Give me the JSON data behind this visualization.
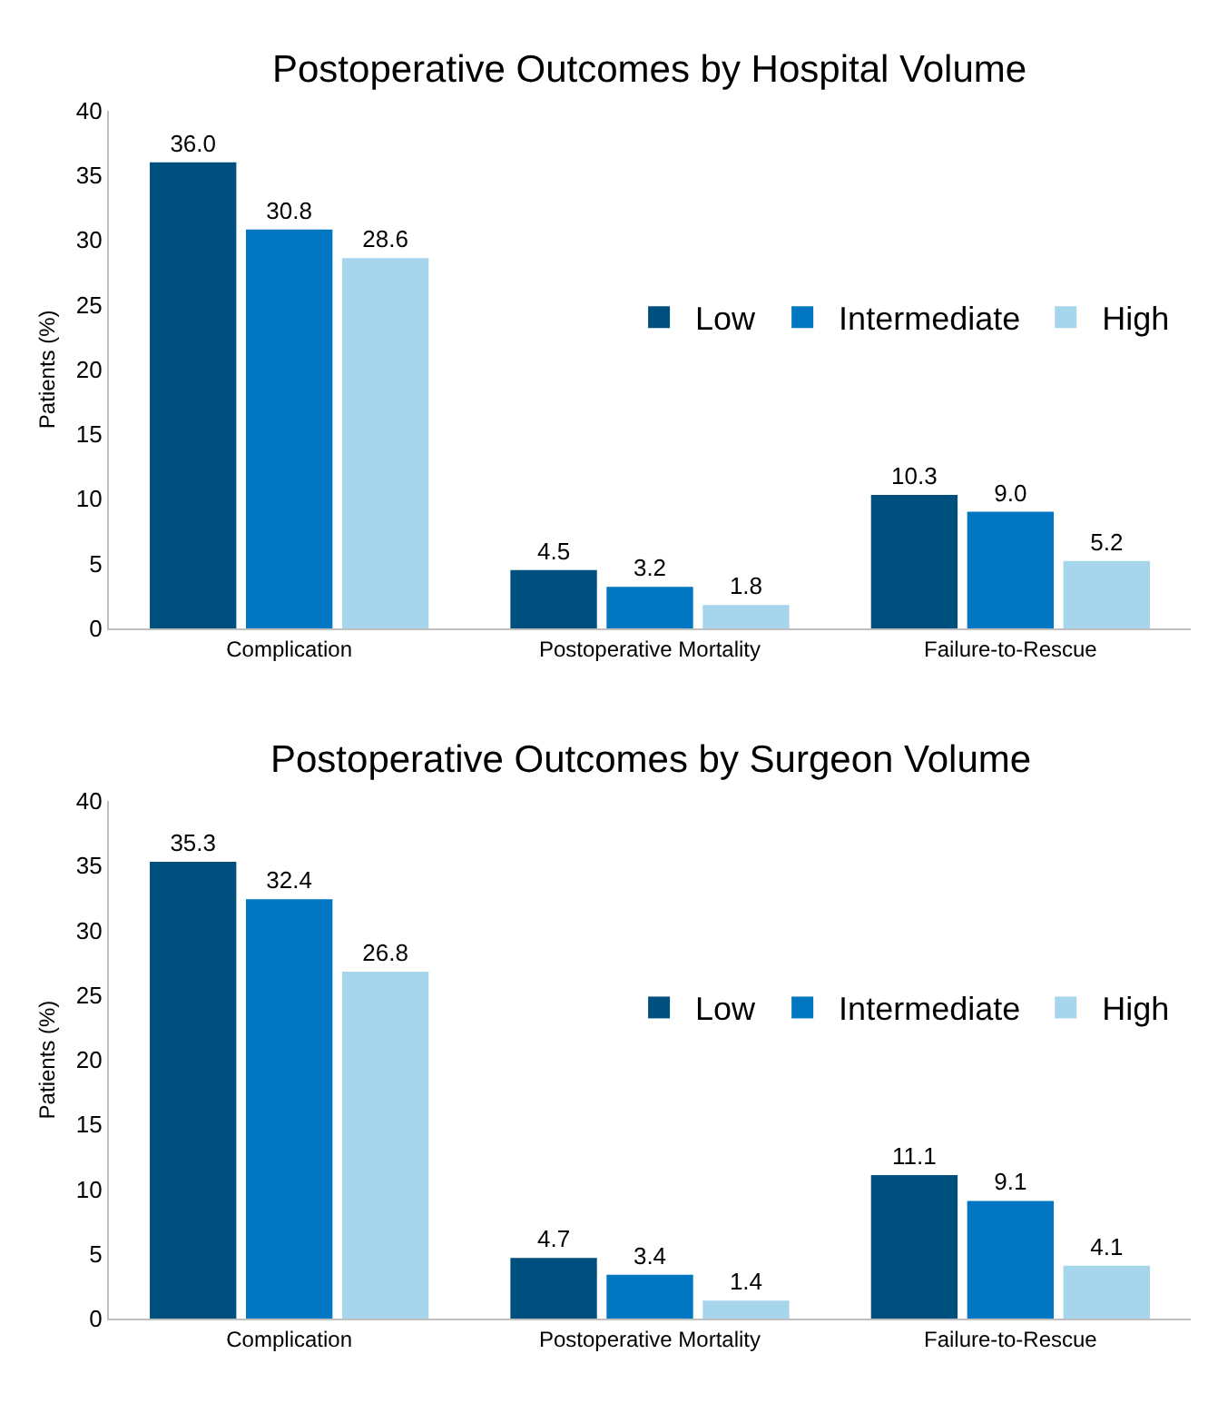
{
  "chart_data": [
    {
      "type": "bar",
      "title": "Postoperative Outcomes by Hospital Volume",
      "ylabel": "Patients (%)",
      "categories": [
        "Complication",
        "Postoperative Mortality",
        "Failure-to-Rescue"
      ],
      "series": [
        {
          "name": "Low",
          "color": "#00507f",
          "values": [
            36.0,
            4.5,
            10.3
          ],
          "value_labels": [
            "36.0",
            "4.5",
            "10.3"
          ]
        },
        {
          "name": "Intermediate",
          "color": "#0077c0",
          "values": [
            30.8,
            3.2,
            9.0
          ],
          "value_labels": [
            "30.8",
            "3.2",
            "9.0"
          ]
        },
        {
          "name": "High",
          "color": "#a6d5ec",
          "values": [
            28.6,
            1.8,
            5.2
          ],
          "value_labels": [
            "28.6",
            "1.8",
            "5.2"
          ]
        }
      ],
      "ylim": [
        0,
        40
      ],
      "yticks": [
        0,
        5,
        10,
        15,
        20,
        25,
        30,
        35,
        40
      ],
      "legend": "right"
    },
    {
      "type": "bar",
      "title": "Postoperative Outcomes by Surgeon Volume",
      "ylabel": "Patients (%)",
      "categories": [
        "Complication",
        "Postoperative Mortality",
        "Failure-to-Rescue"
      ],
      "series": [
        {
          "name": "Low",
          "color": "#00507f",
          "values": [
            35.3,
            4.7,
            11.1
          ],
          "value_labels": [
            "35.3",
            "4.7",
            "11.1"
          ]
        },
        {
          "name": "Intermediate",
          "color": "#0077c0",
          "values": [
            32.4,
            3.4,
            9.1
          ],
          "value_labels": [
            "32.4",
            "3.4",
            "9.1"
          ]
        },
        {
          "name": "High",
          "color": "#a6d5ec",
          "values": [
            26.8,
            1.4,
            4.1
          ],
          "value_labels": [
            "26.8",
            "1.4",
            "4.1"
          ]
        }
      ],
      "ylim": [
        0,
        40
      ],
      "yticks": [
        0,
        5,
        10,
        15,
        20,
        25,
        30,
        35,
        40
      ],
      "legend": "right"
    }
  ]
}
